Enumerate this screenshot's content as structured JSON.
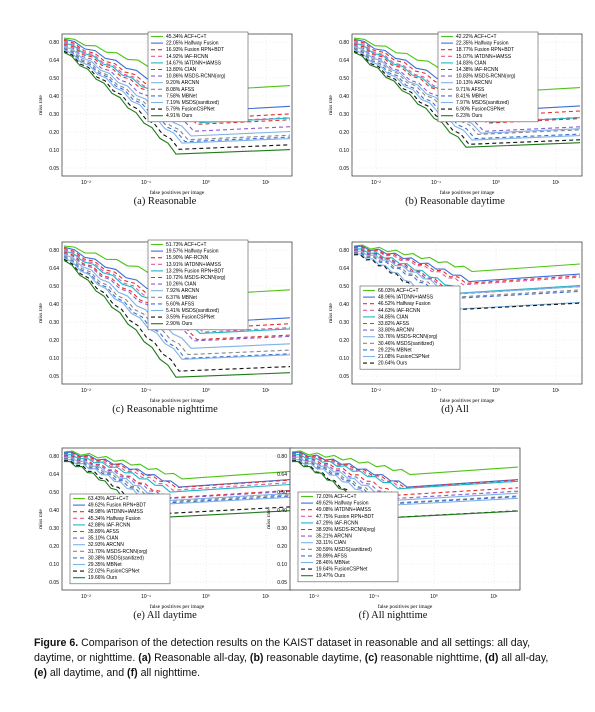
{
  "colors": {
    "green": "#4cc416",
    "darkgreen": "#1f7a1a",
    "blue": "#3b6fd8",
    "red": "#e0322a",
    "cyan": "#1bb7c9",
    "pink": "#e05aa0",
    "black": "#111111",
    "gray": "#888888",
    "lightblue": "#7fb3e6",
    "purple": "#8a5ad6"
  },
  "axis_common": {
    "ylabel": "miss rate",
    "xlabel": "false positives per image",
    "yticks": [
      "0.80",
      "0.64",
      "0.50",
      "0.40",
      "0.30",
      "0.20",
      "0.10",
      "0.05"
    ],
    "xticks": [
      "10⁻²",
      "10⁻¹",
      "10⁰",
      "10¹"
    ]
  },
  "panels": [
    {
      "caption": "(a) Reasonable",
      "legend": [
        "45.34% ACF+C+T",
        "22.05% Halfway Fusion",
        "16.93% Fusion RPN+BDT",
        "14.92% IAF-RCNN",
        "14.67% IATDNN+IAMSS",
        "13.80% CIAN",
        "10.86% MSDS-RCNN(org)",
        "9.20% ARCNN",
        "8.08% AFSS",
        "7.58% MBNet",
        "7.19% MSDS(sanitized)",
        "5.79% FusionCSPNet",
        "4.91% Ours"
      ]
    },
    {
      "caption": "(b) Reasonable daytime",
      "legend": [
        "42.22% ACF+C+T",
        "22.35% Halfway Fusion",
        "18.77% Fusion RPN+BDT",
        "15.07% IATDNN+IAMSS",
        "14.83% CIAN",
        "14.38% IAF-RCNN",
        "10.83% MSDS-RCNN(org)",
        "10.13% ARCNN",
        "9.71% AFSS",
        "8.41% MBNet",
        "7.97% MSDS(sanitized)",
        "6.90% FusionCSPNet",
        "6.23% Ours"
      ]
    },
    {
      "caption": "(c) Reasonable nighttime",
      "legend": [
        "51.73% ACF+C+T",
        "19.57% Halfway Fusion",
        "15.90% IAF-RCNN",
        "13.91% IATDNN+IAMSS",
        "13.29% Fusion RPN+BDT",
        "10.72% MSDS-RCNN(org)",
        "10.26% CIAN",
        "7.92% ARCNN",
        "6.37% MBNet",
        "5.60% AFSS",
        "5.41% MSDS(sanitized)",
        "3.59% FusionCSPNet",
        "2.90% Ours"
      ]
    },
    {
      "caption": "(d) All",
      "legend": [
        "66.03% ACF+C+T",
        "48.96% IATDNN+IAMSS",
        "46.52% Halfway Fusion",
        "44.63% IAF-RCNN",
        "34.85% CIAN",
        "33.82% AFSS",
        "33.80% ARCNN",
        "33.76% MSDS-RCNN(org)",
        "30.46% MSDS(sanitized)",
        "29.22% MBNet",
        "21.08% FusionCSPNet",
        "20.64% Ours"
      ]
    },
    {
      "caption": "(e) All daytime",
      "legend": [
        "63.43% ACF+C+T",
        "49.62% Fusion RPN+BDT",
        "48.98% IATDNN+IAMSS",
        "45.34% Halfway Fusion",
        "42.88% IAF-RCNN",
        "35.89% AFSS",
        "35.10% CIAN",
        "32.93% ARCNN",
        "31.70% MSDS-RCNN(org)",
        "30.38% MSDS(sanitized)",
        "29.35% MBNet",
        "22.02% FusionCSPNet",
        "19.66% Ours"
      ]
    },
    {
      "caption": "(f) All nighttime",
      "legend": [
        "72.03% ACF+C+T",
        "49.62% Halfway Fusion",
        "49.08% IATDNN+IAMSS",
        "47.75% Fusion RPN+BDT",
        "47.29% IAF-RCNN",
        "38.93% MSDS-RCNN(org)",
        "35.21% ARCNN",
        "33.11% CIAN",
        "30.59% MSDS(sanitized)",
        "29.89% AFSS",
        "28.46% MBNet",
        "19.64% FusionCSPNet",
        "19.47% Ours"
      ]
    }
  ],
  "caption": {
    "figure_label": "Figure 6.",
    "text1": " Comparison of the detection results on the KAIST dataset in reasonable and all settings: all day, daytime, or nighttime. ",
    "a": "(a)",
    "ta": " Reasonable all-day, ",
    "b": "(b)",
    "tb": " reasonable daytime, ",
    "c": "(c)",
    "tc": " reasonable nighttime, ",
    "d": "(d)",
    "td": " all all-day, ",
    "e": "(e)",
    "te": " all daytime, and ",
    "f": "(f)",
    "tf": " all nighttime."
  }
}
